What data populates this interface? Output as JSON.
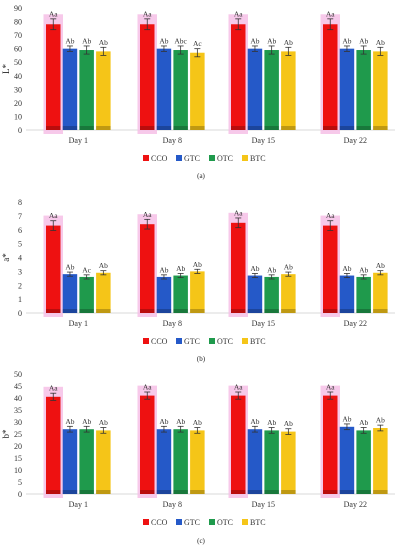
{
  "colors": {
    "CCO": "#ee1111",
    "GTC": "#2559c8",
    "OTC": "#1f9a4c",
    "BTC": "#f5c518",
    "highlight": "#f6bfe6"
  },
  "chart_data": [
    {
      "type": "bar",
      "panel_label": "(a)",
      "ylabel": "L*",
      "ylim": [
        0,
        90
      ],
      "yticks": [
        0,
        10,
        20,
        30,
        40,
        50,
        60,
        70,
        80,
        90
      ],
      "categories": [
        "Day 1",
        "Day 8",
        "Day 15",
        "Day 22"
      ],
      "legend": {
        "position": "bottom"
      },
      "series": [
        {
          "name": "CCO",
          "values": [
            78,
            78,
            78,
            78
          ],
          "errors": [
            4,
            4,
            4,
            4
          ],
          "labels": [
            "Aa",
            "Aa",
            "Aa",
            "Aa"
          ]
        },
        {
          "name": "GTC",
          "values": [
            60,
            60,
            60,
            60
          ],
          "errors": [
            2,
            2,
            2,
            2
          ],
          "labels": [
            "Ab",
            "Ab",
            "Ab",
            "Ab"
          ]
        },
        {
          "name": "OTC",
          "values": [
            59,
            59,
            59,
            59
          ],
          "errors": [
            3,
            3,
            3,
            3
          ],
          "labels": [
            "Ab",
            "Abc",
            "Ab",
            "Ab"
          ]
        },
        {
          "name": "BTC",
          "values": [
            58,
            57,
            58,
            58
          ],
          "errors": [
            3,
            3,
            3,
            3
          ],
          "labels": [
            "Ab",
            "Ac",
            "Ab",
            "Ab"
          ]
        }
      ]
    },
    {
      "type": "bar",
      "panel_label": "(b)",
      "ylabel": "a*",
      "ylim": [
        0,
        8
      ],
      "yticks": [
        0,
        1,
        2,
        3,
        4,
        5,
        6,
        7,
        8
      ],
      "categories": [
        "Day 1",
        "Day 8",
        "Day 15",
        "Day 22"
      ],
      "legend": {
        "position": "bottom"
      },
      "series": [
        {
          "name": "CCO",
          "values": [
            6.3,
            6.4,
            6.5,
            6.3
          ],
          "errors": [
            0.35,
            0.35,
            0.35,
            0.35
          ],
          "labels": [
            "Aa",
            "Aa",
            "Aa",
            "Aa"
          ]
        },
        {
          "name": "GTC",
          "values": [
            2.8,
            2.6,
            2.7,
            2.7
          ],
          "errors": [
            0.15,
            0.15,
            0.15,
            0.15
          ],
          "labels": [
            "Ab",
            "Ab",
            "Ab",
            "Ab"
          ]
        },
        {
          "name": "OTC",
          "values": [
            2.6,
            2.7,
            2.6,
            2.6
          ],
          "errors": [
            0.15,
            0.15,
            0.15,
            0.15
          ],
          "labels": [
            "Ac",
            "Ab",
            "Ab",
            "Ab"
          ]
        },
        {
          "name": "BTC",
          "values": [
            2.9,
            3.0,
            2.8,
            2.9
          ],
          "errors": [
            0.15,
            0.15,
            0.15,
            0.15
          ],
          "labels": [
            "Ab",
            "Ab",
            "Ab",
            "Ab"
          ]
        }
      ]
    },
    {
      "type": "bar",
      "panel_label": "(c)",
      "ylabel": "b*",
      "ylim": [
        0,
        50
      ],
      "yticks": [
        0,
        5,
        10,
        15,
        20,
        25,
        30,
        35,
        40,
        45,
        50
      ],
      "categories": [
        "Day 1",
        "Day 8",
        "Day 15",
        "Day 22"
      ],
      "legend": {
        "position": "bottom"
      },
      "series": [
        {
          "name": "CCO",
          "values": [
            40.5,
            41,
            41,
            41
          ],
          "errors": [
            1.5,
            1.5,
            1.5,
            1.5
          ],
          "labels": [
            "Aa",
            "Aa",
            "Aa",
            "Aa"
          ]
        },
        {
          "name": "GTC",
          "values": [
            27,
            27,
            27,
            28
          ],
          "errors": [
            1.2,
            1.2,
            1.2,
            1.2
          ],
          "labels": [
            "Ab",
            "Ab",
            "Ab",
            "Ab"
          ]
        },
        {
          "name": "OTC",
          "values": [
            27,
            27,
            26.5,
            26.5
          ],
          "errors": [
            1.2,
            1.2,
            1.2,
            1.2
          ],
          "labels": [
            "Ab",
            "Ab",
            "Ab",
            "Ab"
          ]
        },
        {
          "name": "BTC",
          "values": [
            26.5,
            26.5,
            26,
            27.5
          ],
          "errors": [
            1.2,
            1.2,
            1.2,
            1.2
          ],
          "labels": [
            "Ab",
            "Ab",
            "Ab",
            "Ab"
          ]
        }
      ]
    }
  ]
}
